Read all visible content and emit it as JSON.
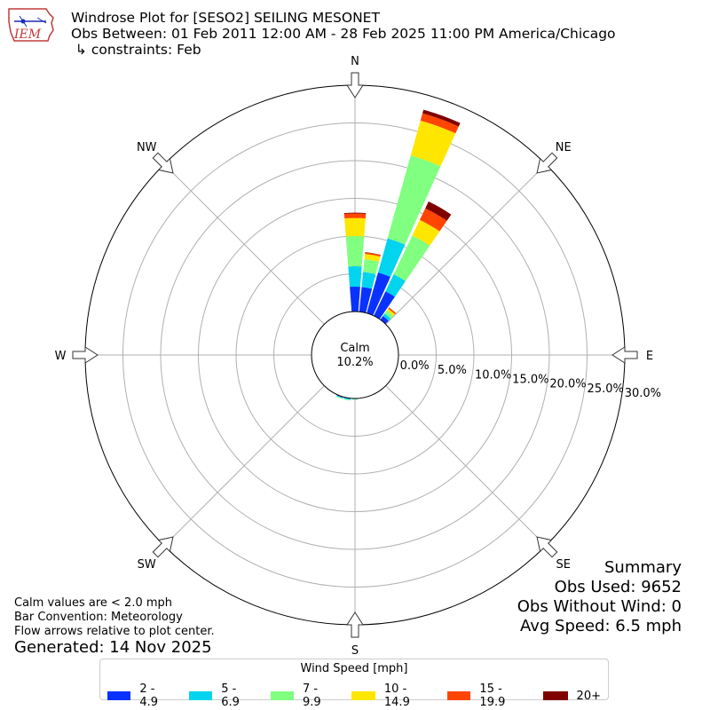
{
  "header": {
    "title_line1": "Windrose Plot for [SESO2] SEILING MESONET",
    "title_line2": "Obs Between: 01 Feb 2011 12:00 AM - 28 Feb 2025 11:00 PM America/Chicago",
    "title_line3": " ↳ constraints: Feb",
    "logo_text": "IEM"
  },
  "chart_data": {
    "type": "windrose",
    "directions": [
      "N",
      "NE",
      "E",
      "SE",
      "S",
      "SW",
      "W",
      "NW"
    ],
    "sector_width_deg": 10,
    "r_ticks": [
      0,
      5,
      10,
      15,
      20,
      25,
      30
    ],
    "r_tick_labels": [
      "0.0%",
      "5.0%",
      "10.0%",
      "15.0%",
      "20.0%",
      "25.0%",
      "30.0%"
    ],
    "rmax": 30,
    "calm": {
      "label": "Calm",
      "value": "10.2%"
    },
    "speed_bins": [
      "2 - 4.9",
      "5 - 6.9",
      "7 - 9.9",
      "10 - 14.9",
      "15 - 19.9",
      "20+"
    ],
    "colors": [
      "#0a32ff",
      "#00d4ee",
      "#80ff80",
      "#ffe600",
      "#ff4500",
      "#800000"
    ],
    "sectors": [
      {
        "dir_deg": 0,
        "values": [
          3.3,
          2.7,
          4.0,
          2.4,
          0.6,
          0.1
        ]
      },
      {
        "dir_deg": 10,
        "values": [
          3.3,
          2.0,
          1.7,
          0.7,
          0.2,
          0.05
        ]
      },
      {
        "dir_deg": 20,
        "values": [
          5.6,
          4.7,
          11.4,
          4.8,
          1.0,
          0.5
        ]
      },
      {
        "dir_deg": 30,
        "values": [
          3.6,
          2.5,
          5.7,
          2.3,
          1.7,
          1.0
        ]
      },
      {
        "dir_deg": 40,
        "values": [
          0.6,
          0.4,
          0.5,
          0.3,
          0.2,
          0.0
        ]
      },
      {
        "dir_deg": 180,
        "values": [
          0.05,
          0.05,
          0.05,
          0.0,
          0.0,
          0.0
        ]
      },
      {
        "dir_deg": 190,
        "values": [
          0.1,
          0.1,
          0.1,
          0.0,
          0.0,
          0.0
        ]
      },
      {
        "dir_deg": 200,
        "values": [
          0.1,
          0.1,
          0.1,
          0.0,
          0.0,
          0.0
        ]
      }
    ]
  },
  "legend": {
    "title": "Wind Speed [mph]",
    "items": [
      "2 - 4.9",
      "5 - 6.9",
      "7 - 9.9",
      "10 - 14.9",
      "15 - 19.9",
      "20+"
    ]
  },
  "notes": {
    "line1": "Calm values are < 2.0 mph",
    "line2": "Bar Convention: Meteorology",
    "line3": "Flow arrows relative to plot center.",
    "generated": "Generated: 14 Nov 2025"
  },
  "summary": {
    "title": "Summary",
    "obs_used": "Obs Used: 9652",
    "obs_without_wind": "Obs Without Wind: 0",
    "avg_speed": "Avg Speed: 6.5 mph"
  }
}
